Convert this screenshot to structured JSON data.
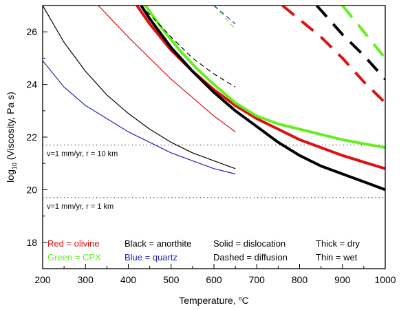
{
  "chart_data": {
    "type": "line",
    "title": "",
    "xlabel": "Temperature, ",
    "xlabel_sup": "o",
    "xlabel_unit": "C",
    "ylabel_prefix": "log",
    "ylabel_sub": "10",
    "ylabel_rest": " (Viscosity, Pa s)",
    "xlim": [
      200,
      1000
    ],
    "ylim": [
      17,
      27
    ],
    "xticks": [
      200,
      300,
      400,
      500,
      600,
      700,
      800,
      900,
      1000
    ],
    "yticks": [
      18,
      20,
      22,
      24,
      26
    ],
    "grid": false,
    "colors": {
      "red": "#dd1111",
      "green": "#66ee22",
      "black": "#000000",
      "blue": "#2222bb"
    },
    "series": [
      {
        "name": "",
        "color": "red",
        "style": "solid",
        "weight": "thick",
        "x": [
          420,
          450,
          500,
          550,
          600,
          650,
          700,
          750,
          800,
          850,
          900,
          950,
          1000
        ],
        "y": [
          27.0,
          26.3,
          25.3,
          24.5,
          23.8,
          23.2,
          22.7,
          22.3,
          21.9,
          21.6,
          21.3,
          21.05,
          20.8
        ]
      },
      {
        "name": "",
        "color": "green",
        "style": "solid",
        "weight": "thick",
        "x": [
          440,
          480,
          520,
          560,
          600,
          650,
          700,
          750,
          800,
          850,
          900,
          950,
          1000
        ],
        "y": [
          27.0,
          26.1,
          25.3,
          24.6,
          24.0,
          23.3,
          22.8,
          22.5,
          22.3,
          22.1,
          21.9,
          21.75,
          21.6
        ]
      },
      {
        "name": "",
        "color": "black",
        "style": "solid",
        "weight": "thick",
        "x": [
          430,
          450,
          500,
          550,
          600,
          650,
          700,
          750,
          800,
          850,
          900,
          950,
          1000
        ],
        "y": [
          27.0,
          26.5,
          25.4,
          24.5,
          23.7,
          23.0,
          22.4,
          21.8,
          21.3,
          20.9,
          20.6,
          20.3,
          20.0
        ]
      },
      {
        "name": "",
        "color": "red",
        "style": "solid",
        "weight": "thin",
        "x": [
          330,
          400,
          450,
          500,
          550,
          600,
          650
        ],
        "y": [
          27.0,
          25.8,
          25.0,
          24.2,
          23.5,
          22.8,
          22.2
        ]
      },
      {
        "name": "",
        "color": "black",
        "style": "solid",
        "weight": "thin",
        "x": [
          200,
          250,
          300,
          350,
          400,
          450,
          500,
          550,
          600,
          650
        ],
        "y": [
          27.0,
          25.6,
          24.5,
          23.6,
          22.9,
          22.3,
          21.8,
          21.4,
          21.1,
          20.8
        ]
      },
      {
        "name": "",
        "color": "blue",
        "style": "solid",
        "weight": "thin",
        "x": [
          200,
          250,
          300,
          350,
          400,
          450,
          500,
          550,
          600,
          650
        ],
        "y": [
          24.9,
          23.9,
          23.2,
          22.7,
          22.2,
          21.8,
          21.4,
          21.1,
          20.8,
          20.6
        ]
      },
      {
        "name": "",
        "color": "black",
        "style": "dashed",
        "weight": "thin",
        "x": [
          430,
          500,
          550,
          600,
          650
        ],
        "y": [
          27.0,
          25.8,
          25.0,
          24.4,
          23.9
        ]
      },
      {
        "name": "",
        "color": "green",
        "style": "dashed",
        "weight": "thin",
        "x": [
          600,
          650
        ],
        "y": [
          27.0,
          26.1
        ]
      },
      {
        "name": "",
        "color": "blue",
        "style": "dashed",
        "weight": "thin",
        "x": [
          600,
          650
        ],
        "y": [
          27.0,
          26.3
        ]
      },
      {
        "name": "",
        "color": "red",
        "style": "dashed",
        "weight": "thick",
        "x": [
          760,
          850,
          900,
          950,
          1000
        ],
        "y": [
          27.0,
          25.8,
          25.0,
          24.1,
          23.3
        ]
      },
      {
        "name": "",
        "color": "black",
        "style": "dashed",
        "weight": "thick",
        "x": [
          840,
          900,
          950,
          1000
        ],
        "y": [
          27.0,
          25.9,
          25.1,
          24.2
        ]
      },
      {
        "name": "",
        "color": "green",
        "style": "dashed",
        "weight": "thick",
        "x": [
          900,
          950,
          1000
        ],
        "y": [
          27.0,
          26.0,
          25.0
        ]
      }
    ],
    "reference_lines": [
      {
        "y": 21.7,
        "label": "v=1 mm/yr, r = 10 km"
      },
      {
        "y": 19.7,
        "label": "v=1 mm/yr, r = 1 km"
      }
    ],
    "legend": {
      "placement": "bottom",
      "entries": [
        {
          "text": "Red = olivine",
          "color": "red"
        },
        {
          "text": "Green = CPX",
          "color": "green"
        },
        {
          "text": "Black = anorthite",
          "color": "black"
        },
        {
          "text": "Blue = quartz",
          "color": "blue"
        },
        {
          "text": "Solid = dislocation",
          "color": "black"
        },
        {
          "text": "Dashed = diffusion",
          "color": "black"
        },
        {
          "text": "Thick = dry",
          "color": "black"
        },
        {
          "text": "Thin = wet",
          "color": "black"
        }
      ]
    }
  }
}
